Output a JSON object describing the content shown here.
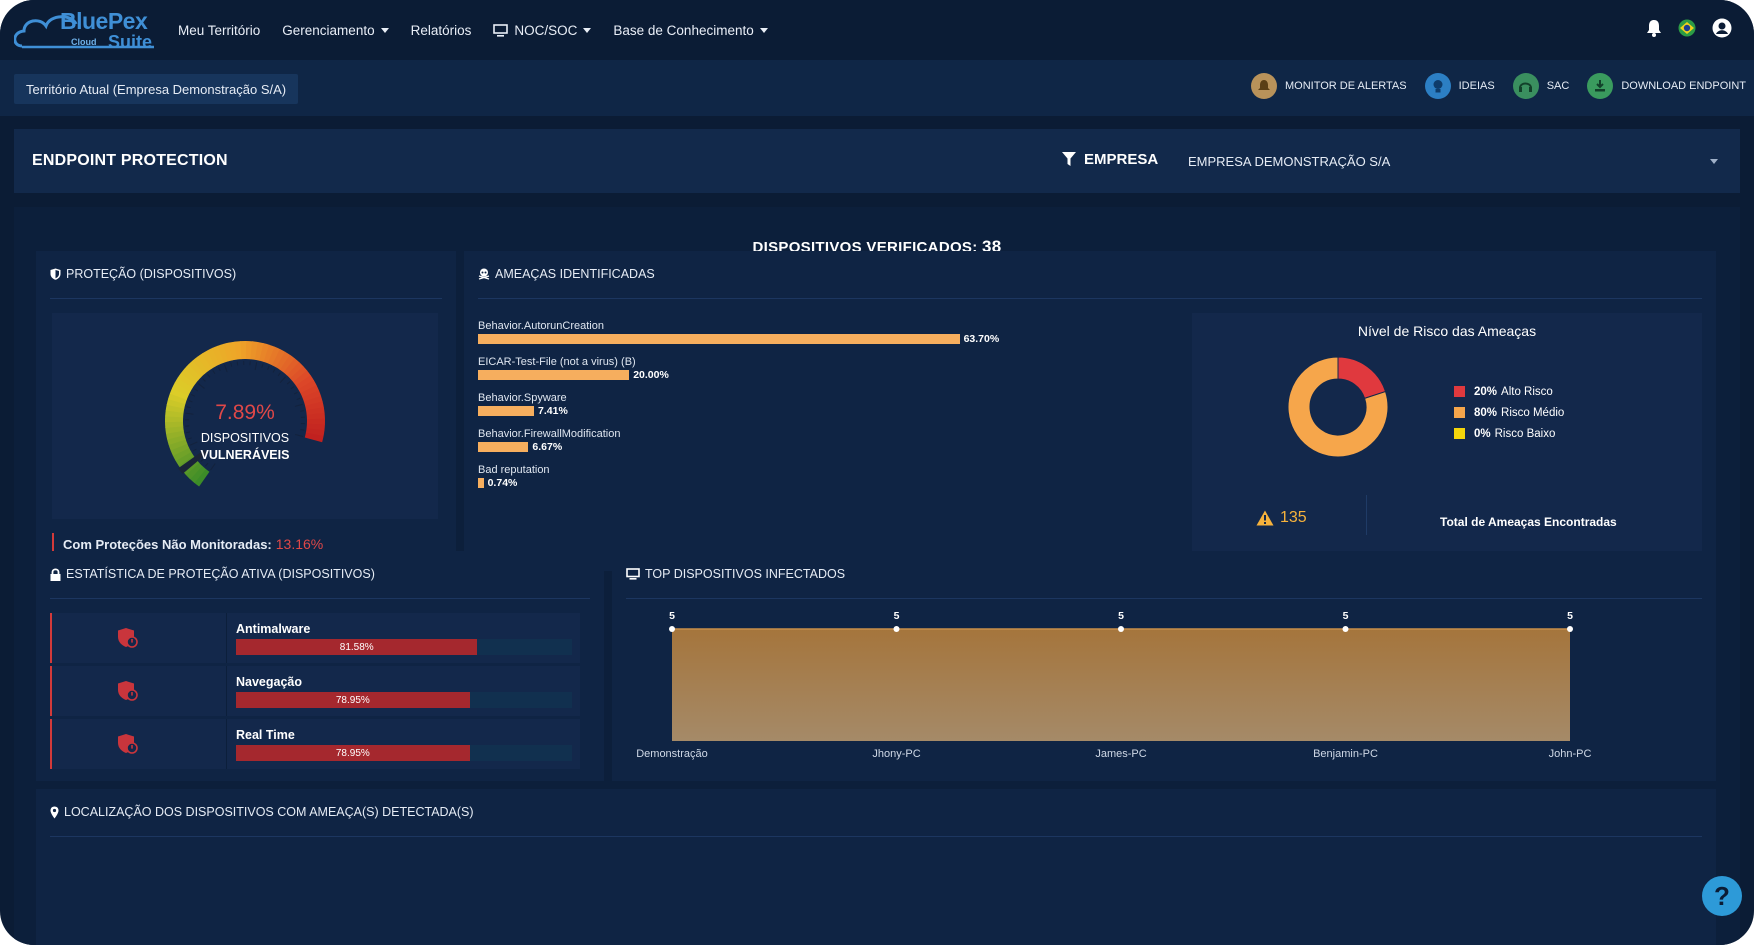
{
  "logo": {
    "brand": "BluePex",
    "sub": "Cloud",
    "suite": "Suite"
  },
  "nav": {
    "items": [
      {
        "label": "Meu Território",
        "dropdown": false
      },
      {
        "label": "Gerenciamento",
        "dropdown": true
      },
      {
        "label": "Relatórios",
        "dropdown": false
      },
      {
        "label": "NOC/SOC",
        "dropdown": true
      },
      {
        "label": "Base de Conhecimento",
        "dropdown": true
      }
    ],
    "right_icons": [
      "bell-icon",
      "brazil-flag-icon",
      "user-icon"
    ]
  },
  "territory": "Território Atual (Empresa Demonstração S/A)",
  "quick_links": [
    {
      "label": "MONITOR DE ALERTAS",
      "icon": "alert-monitor-icon",
      "color": "#b8925a"
    },
    {
      "label": "IDEIAS",
      "icon": "lightbulb-icon",
      "color": "#2c7fc4"
    },
    {
      "label": "SAC",
      "icon": "headset-icon",
      "color": "#3a8f5f"
    },
    {
      "label": "DOWNLOAD ENDPOINT",
      "icon": "download-icon",
      "color": "#3a9b5e"
    }
  ],
  "header": {
    "title": "ENDPOINT PROTECTION",
    "filter_label": "EMPRESA",
    "company_selected": "EMPRESA DEMONSTRAÇÃO S/A"
  },
  "devices": {
    "label": "DISPOSITIVOS VERIFICADOS:",
    "count": "38"
  },
  "protection": {
    "title": "PROTEÇÃO (DISPOSITIVOS)",
    "gauge_value": "7.89%",
    "gauge_fraction": 0.0789,
    "gauge_label_1": "DISPOSITIVOS",
    "gauge_label_2": "VULNERÁVEIS",
    "unmonitored_label": "Com Proteções Não Monitoradas:",
    "unmonitored_value": "13.16%"
  },
  "threats": {
    "title": "AMEAÇAS IDENTIFICADAS",
    "items": [
      {
        "name": "Behavior.AutorunCreation",
        "pct": 63.7,
        "label": "63.70%"
      },
      {
        "name": "EICAR-Test-File (not a virus) (B)",
        "pct": 20.0,
        "label": "20.00%"
      },
      {
        "name": "Behavior.Spyware",
        "pct": 7.41,
        "label": "7.41%"
      },
      {
        "name": "Behavior.FirewallModification",
        "pct": 6.67,
        "label": "6.67%"
      },
      {
        "name": "Bad reputation",
        "pct": 0.74,
        "label": "0.74%"
      }
    ]
  },
  "risk": {
    "title": "Nível de Risco das Ameaças",
    "levels": [
      {
        "pct": 20,
        "pct_label": "20%",
        "label": "Alto Risco",
        "color": "#e0393e"
      },
      {
        "pct": 80,
        "pct_label": "80%",
        "label": "Risco Médio",
        "color": "#f6a64b"
      },
      {
        "pct": 0,
        "pct_label": "0%",
        "label": "Risco Baixo",
        "color": "#f4d50b"
      }
    ],
    "total": "135",
    "total_label": "Total de Ameaças Encontradas"
  },
  "active_stats": {
    "title": "ESTATÍSTICA DE PROTEÇÃO ATIVA (DISPOSITIVOS)",
    "rows": [
      {
        "name": "Antimalware",
        "pct": 81.58,
        "label": "81.58%"
      },
      {
        "name": "Navegação",
        "pct": 78.95,
        "label": "78.95%"
      },
      {
        "name": "Real Time",
        "pct": 78.95,
        "label": "78.95%"
      }
    ]
  },
  "top_infected": {
    "title": "TOP DISPOSITIVOS INFECTADOS"
  },
  "location": {
    "title": "LOCALIZAÇÃO DOS DISPOSITIVOS COM AMEAÇA(S) DETECTADA(S)"
  },
  "help": "?",
  "chart_data": [
    {
      "type": "area",
      "categories": [
        "Demonstração",
        "Jhony-PC",
        "James-PC",
        "Benjamin-PC",
        "John-PC"
      ],
      "values": [
        5,
        5,
        5,
        5,
        5
      ]
    },
    {
      "type": "bar",
      "categories": [
        "Behavior.AutorunCreation",
        "EICAR-Test-File (not a virus) (B)",
        "Behavior.Spyware",
        "Behavior.FirewallModification",
        "Bad reputation"
      ],
      "values": [
        63.7,
        20.0,
        7.41,
        6.67,
        0.74
      ]
    },
    {
      "type": "pie",
      "categories": [
        "Alto Risco",
        "Risco Médio",
        "Risco Baixo"
      ],
      "values": [
        20,
        80,
        0
      ]
    }
  ]
}
